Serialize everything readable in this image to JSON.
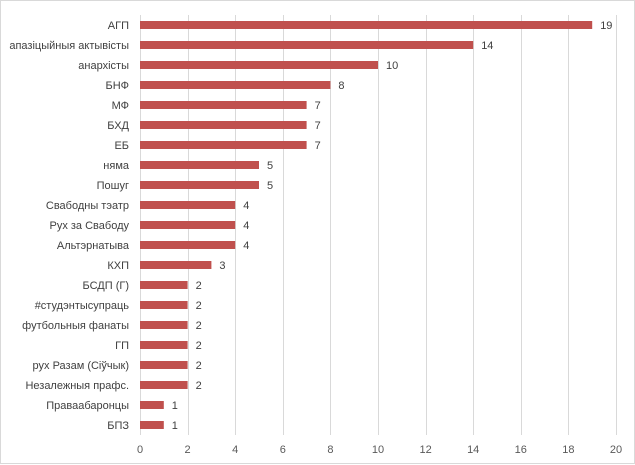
{
  "chart_data": {
    "type": "bar",
    "orientation": "horizontal",
    "title": "",
    "xlabel": "",
    "ylabel": "",
    "xlim": [
      0,
      20
    ],
    "x_ticks": [
      0,
      2,
      4,
      6,
      8,
      10,
      12,
      14,
      16,
      18,
      20
    ],
    "grid": "vertical",
    "legend": "none",
    "bar_color": "#C0504D",
    "categories": [
      "АГП",
      "апазіцыйныя актывісты",
      "анархісты",
      "БНФ",
      "МФ",
      "БХД",
      "ЕБ",
      "няма",
      "Пошуг",
      "Свабодны тэатр",
      "Рух за Свабоду",
      "Альтэрнатыва",
      "КХП",
      "БСДП (Г)",
      "#студэнтысупраць",
      "футбольныя фанаты",
      "ГП",
      "рух Разам (Сіўчык)",
      "Незалежныя прафс.",
      "Праваабаронцы",
      "БПЗ"
    ],
    "values": [
      19,
      14,
      10,
      8,
      7,
      7,
      7,
      5,
      5,
      4,
      4,
      4,
      3,
      2,
      2,
      2,
      2,
      2,
      2,
      1,
      1
    ]
  }
}
